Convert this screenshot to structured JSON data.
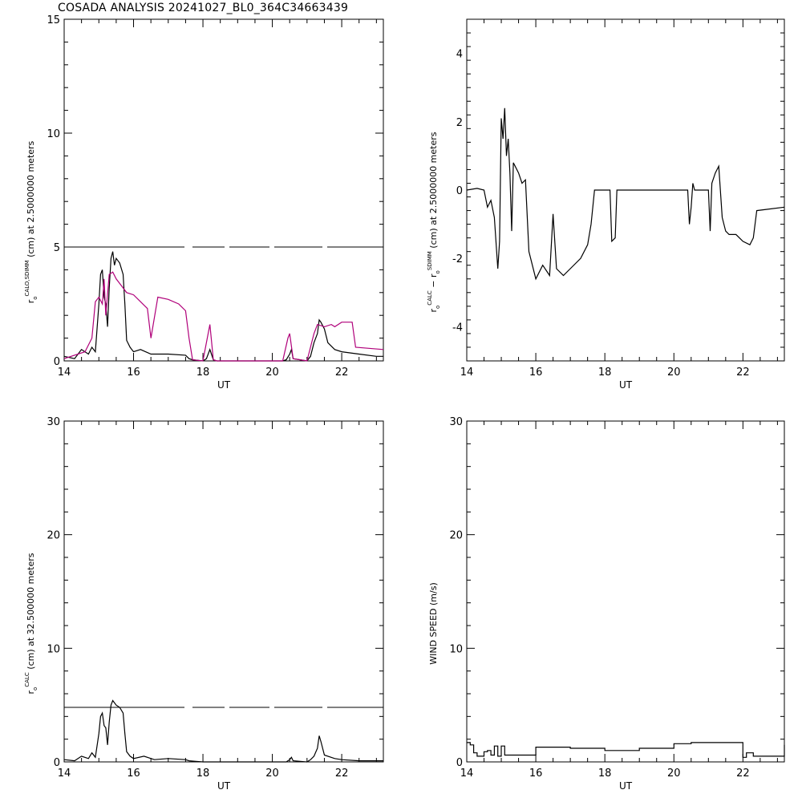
{
  "title": "COSADA ANALYSIS 20241027_BL0_364C34663439",
  "chart_data": [
    {
      "type": "line",
      "xlabel": "UT",
      "ylabel": "rₒCALO,SDIMM (cm)  at  2.5000000 meters",
      "ylabel_parts": {
        "base": "r",
        "sub": "o",
        "sup": "CALO,SDIMM",
        "rest": " (cm)  at  2.5000000 meters"
      },
      "xlim": [
        14,
        23.2
      ],
      "ylim": [
        0,
        15
      ],
      "xticks": [
        14,
        16,
        18,
        20,
        22
      ],
      "yticks": [
        0,
        5,
        10,
        15
      ],
      "reference_line": {
        "y": 5,
        "style": "long-dash"
      },
      "series": [
        {
          "color": "#000000",
          "x": [
            14.0,
            14.3,
            14.5,
            14.7,
            14.8,
            14.9,
            15.0,
            15.05,
            15.1,
            15.15,
            15.2,
            15.25,
            15.3,
            15.35,
            15.4,
            15.45,
            15.5,
            15.6,
            15.7,
            15.75,
            15.8,
            15.9,
            16.0,
            16.2,
            16.5,
            17.0,
            17.5,
            17.6,
            17.7,
            18.0,
            18.1,
            18.2,
            18.3,
            18.4,
            18.5,
            19.0,
            19.5,
            20.0,
            20.3,
            20.4,
            20.5,
            20.55,
            20.6,
            21.0,
            21.1,
            21.2,
            21.3,
            21.35,
            21.4,
            21.5,
            21.6,
            21.8,
            22.0,
            22.5,
            23.0,
            23.2
          ],
          "y": [
            0.2,
            0.1,
            0.5,
            0.3,
            0.6,
            0.4,
            2.5,
            3.8,
            4.0,
            2.8,
            2.5,
            1.5,
            3.2,
            4.5,
            4.8,
            4.2,
            4.5,
            4.3,
            3.8,
            2.5,
            0.9,
            0.6,
            0.4,
            0.5,
            0.3,
            0.3,
            0.25,
            0.1,
            0.05,
            0.0,
            0.1,
            0.5,
            0.05,
            0.0,
            0.0,
            0.0,
            0.0,
            0.0,
            0.0,
            0.05,
            0.3,
            0.5,
            0.1,
            0.0,
            0.2,
            0.8,
            1.2,
            1.8,
            1.7,
            1.4,
            0.8,
            0.5,
            0.4,
            0.3,
            0.2,
            0.2
          ]
        },
        {
          "color": "#b0007a",
          "x": [
            14.0,
            14.6,
            14.8,
            14.9,
            15.0,
            15.1,
            15.15,
            15.2,
            15.3,
            15.4,
            15.5,
            15.6,
            15.8,
            16.0,
            16.2,
            16.4,
            16.5,
            16.7,
            17.0,
            17.3,
            17.5,
            17.6,
            17.7,
            18.0,
            18.2,
            18.3,
            18.4,
            20.3,
            20.45,
            20.5,
            20.6,
            21.0,
            21.2,
            21.3,
            21.5,
            21.7,
            21.8,
            22.0,
            22.3,
            22.4,
            23.2
          ],
          "y": [
            0.1,
            0.4,
            1.0,
            2.6,
            2.8,
            2.5,
            3.6,
            2.0,
            3.8,
            3.9,
            3.6,
            3.4,
            3.0,
            2.9,
            2.6,
            2.3,
            1.0,
            2.8,
            2.7,
            2.5,
            2.2,
            1.0,
            0.05,
            0.0,
            1.6,
            0.05,
            0.0,
            0.0,
            1.0,
            1.2,
            0.1,
            0.0,
            1.2,
            1.6,
            1.5,
            1.6,
            1.5,
            1.7,
            1.7,
            0.6,
            0.5
          ]
        }
      ]
    },
    {
      "type": "line",
      "xlabel": "UT",
      "ylabel": "rₒCALC − rₒSDIMM (cm) at 2.5000000 meters",
      "ylabel_parts": {
        "a_base": "r",
        "a_sub": "o",
        "a_sup": "CALC",
        "mid": "  −  ",
        "b_base": "r",
        "b_sub": "o",
        "b_sup": "SDIMM",
        "rest": " (cm) at 2.5000000 meters"
      },
      "xlim": [
        14,
        23.2
      ],
      "ylim": [
        -5,
        5
      ],
      "xticks": [
        14,
        16,
        18,
        20,
        22
      ],
      "yticks": [
        -4,
        -2,
        0,
        2,
        4
      ],
      "series": [
        {
          "color": "#000000",
          "x": [
            14.0,
            14.3,
            14.5,
            14.6,
            14.7,
            14.8,
            14.9,
            14.95,
            15.0,
            15.05,
            15.1,
            15.15,
            15.2,
            15.25,
            15.3,
            15.35,
            15.4,
            15.5,
            15.6,
            15.7,
            15.8,
            15.9,
            16.0,
            16.2,
            16.4,
            16.5,
            16.6,
            16.8,
            17.0,
            17.3,
            17.5,
            17.6,
            17.7,
            18.0,
            18.15,
            18.2,
            18.3,
            18.35,
            18.5,
            20.0,
            20.4,
            20.45,
            20.5,
            20.55,
            20.6,
            21.0,
            21.05,
            21.1,
            21.2,
            21.3,
            21.4,
            21.5,
            21.6,
            21.8,
            22.0,
            22.2,
            22.3,
            22.4,
            23.2
          ],
          "y": [
            0.0,
            0.05,
            0.0,
            -0.5,
            -0.3,
            -0.8,
            -2.3,
            -1.5,
            2.1,
            1.5,
            2.4,
            1.0,
            1.5,
            0.5,
            -1.2,
            0.8,
            0.7,
            0.5,
            0.2,
            0.3,
            -1.8,
            -2.2,
            -2.6,
            -2.2,
            -2.5,
            -0.7,
            -2.3,
            -2.5,
            -2.3,
            -2.0,
            -1.6,
            -1.0,
            0.0,
            0.0,
            0.0,
            -1.5,
            -1.4,
            0.0,
            0.0,
            0.0,
            0.0,
            -1.0,
            -0.5,
            0.2,
            0.0,
            0.0,
            -1.2,
            0.2,
            0.5,
            0.7,
            -0.8,
            -1.2,
            -1.3,
            -1.3,
            -1.5,
            -1.6,
            -1.4,
            -0.6,
            -0.5
          ]
        }
      ]
    },
    {
      "type": "line",
      "xlabel": "UT",
      "ylabel": "rₒCALC (cm) at 32.500000 meters",
      "ylabel_parts": {
        "base": "r",
        "sub": "o",
        "sup": "CALC",
        "rest": " (cm) at 32.500000 meters"
      },
      "xlim": [
        14,
        23.2
      ],
      "ylim": [
        0,
        30
      ],
      "xticks": [
        14,
        16,
        18,
        20,
        22
      ],
      "yticks": [
        0,
        10,
        20,
        30
      ],
      "reference_line": {
        "y": 4.8,
        "style": "long-dash"
      },
      "series": [
        {
          "color": "#000000",
          "x": [
            14.0,
            14.3,
            14.5,
            14.7,
            14.8,
            14.9,
            15.0,
            15.05,
            15.1,
            15.15,
            15.2,
            15.25,
            15.3,
            15.35,
            15.4,
            15.5,
            15.6,
            15.7,
            15.75,
            15.8,
            15.9,
            16.0,
            16.3,
            16.6,
            17.0,
            17.5,
            17.6,
            17.8,
            18.0,
            18.5,
            19.0,
            19.5,
            20.0,
            20.4,
            20.5,
            20.55,
            20.6,
            21.0,
            21.1,
            21.2,
            21.3,
            21.35,
            21.4,
            21.5,
            21.8,
            22.0,
            22.5,
            23.0,
            23.2
          ],
          "y": [
            0.2,
            0.1,
            0.5,
            0.3,
            0.8,
            0.4,
            2.5,
            4.0,
            4.3,
            3.2,
            3.0,
            1.5,
            3.5,
            5.0,
            5.4,
            5.0,
            4.8,
            4.3,
            2.5,
            0.9,
            0.5,
            0.3,
            0.5,
            0.2,
            0.3,
            0.2,
            0.1,
            0.05,
            0.0,
            0.0,
            0.0,
            0.0,
            0.0,
            0.0,
            0.2,
            0.4,
            0.1,
            0.0,
            0.2,
            0.5,
            1.2,
            2.3,
            1.8,
            0.6,
            0.3,
            0.2,
            0.1,
            0.1,
            0.1
          ]
        }
      ]
    },
    {
      "type": "line",
      "xlabel": "UT",
      "ylabel": "WIND SPEED (m/s)",
      "xlim": [
        14,
        23.2
      ],
      "ylim": [
        0,
        30
      ],
      "xticks": [
        14,
        16,
        18,
        20,
        22
      ],
      "yticks": [
        0,
        10,
        20,
        30
      ],
      "series": [
        {
          "color": "#000000",
          "step": true,
          "x": [
            14.0,
            14.1,
            14.2,
            14.3,
            14.5,
            14.6,
            14.7,
            14.8,
            14.9,
            15.0,
            15.1,
            16.0,
            17.0,
            18.0,
            19.0,
            20.0,
            20.5,
            21.0,
            21.5,
            22.0,
            22.1,
            22.3,
            23.2
          ],
          "y": [
            1.7,
            1.5,
            0.8,
            0.5,
            0.9,
            1.0,
            0.6,
            1.4,
            0.5,
            1.4,
            0.6,
            1.3,
            1.2,
            1.0,
            1.2,
            1.6,
            1.7,
            1.7,
            1.7,
            0.4,
            0.8,
            0.5,
            1.5
          ]
        }
      ]
    }
  ]
}
